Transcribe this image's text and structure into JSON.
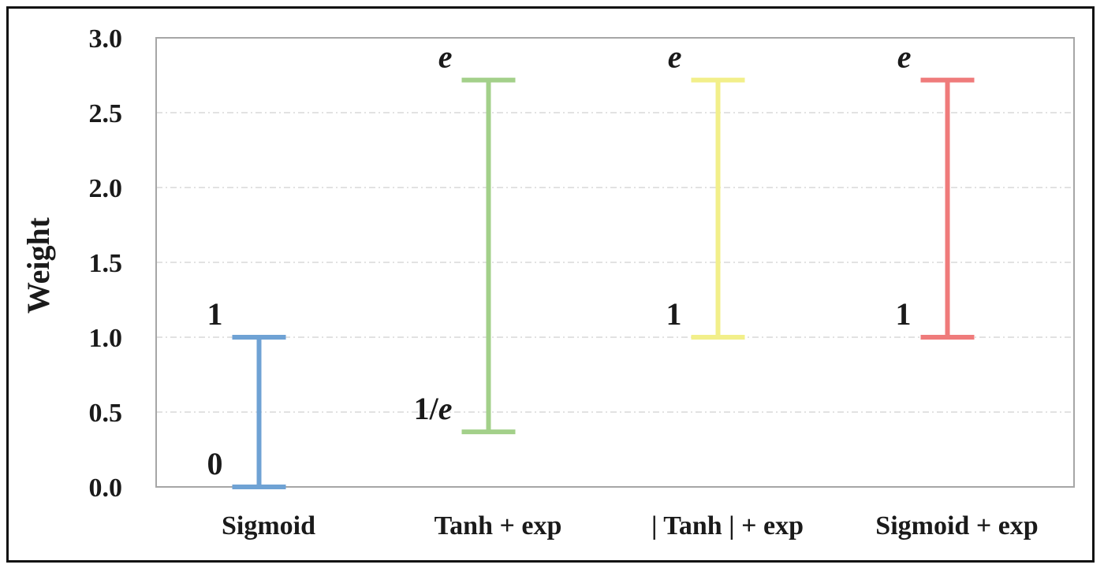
{
  "chart_data": {
    "type": "range",
    "title": "",
    "xlabel": "",
    "ylabel": "Weight",
    "ylim": [
      0,
      3
    ],
    "yticks": [
      "0.0",
      "0.5",
      "1.0",
      "1.5",
      "2.0",
      "2.5",
      "3.0"
    ],
    "grid": "horizontal dashed",
    "legend": "none",
    "categories": [
      "Sigmoid",
      "Tanh + exp",
      "| Tanh | + exp",
      "Sigmoid + exp"
    ],
    "ranges": [
      {
        "category": "Sigmoid",
        "low": 0.0,
        "high": 1.0,
        "low_label": "0",
        "high_label": "1",
        "color": "#6fa2d4"
      },
      {
        "category": "Tanh + exp",
        "low": 0.368,
        "high": 2.718,
        "low_label": "1/e",
        "high_label": "e",
        "color": "#a3d08a"
      },
      {
        "category": "| Tanh | + exp",
        "low": 1.0,
        "high": 2.718,
        "low_label": "1",
        "high_label": "e",
        "color": "#f2ef8a"
      },
      {
        "category": "Sigmoid + exp",
        "low": 1.0,
        "high": 2.718,
        "low_label": "1",
        "high_label": "e",
        "color": "#ef7b7b"
      }
    ]
  }
}
